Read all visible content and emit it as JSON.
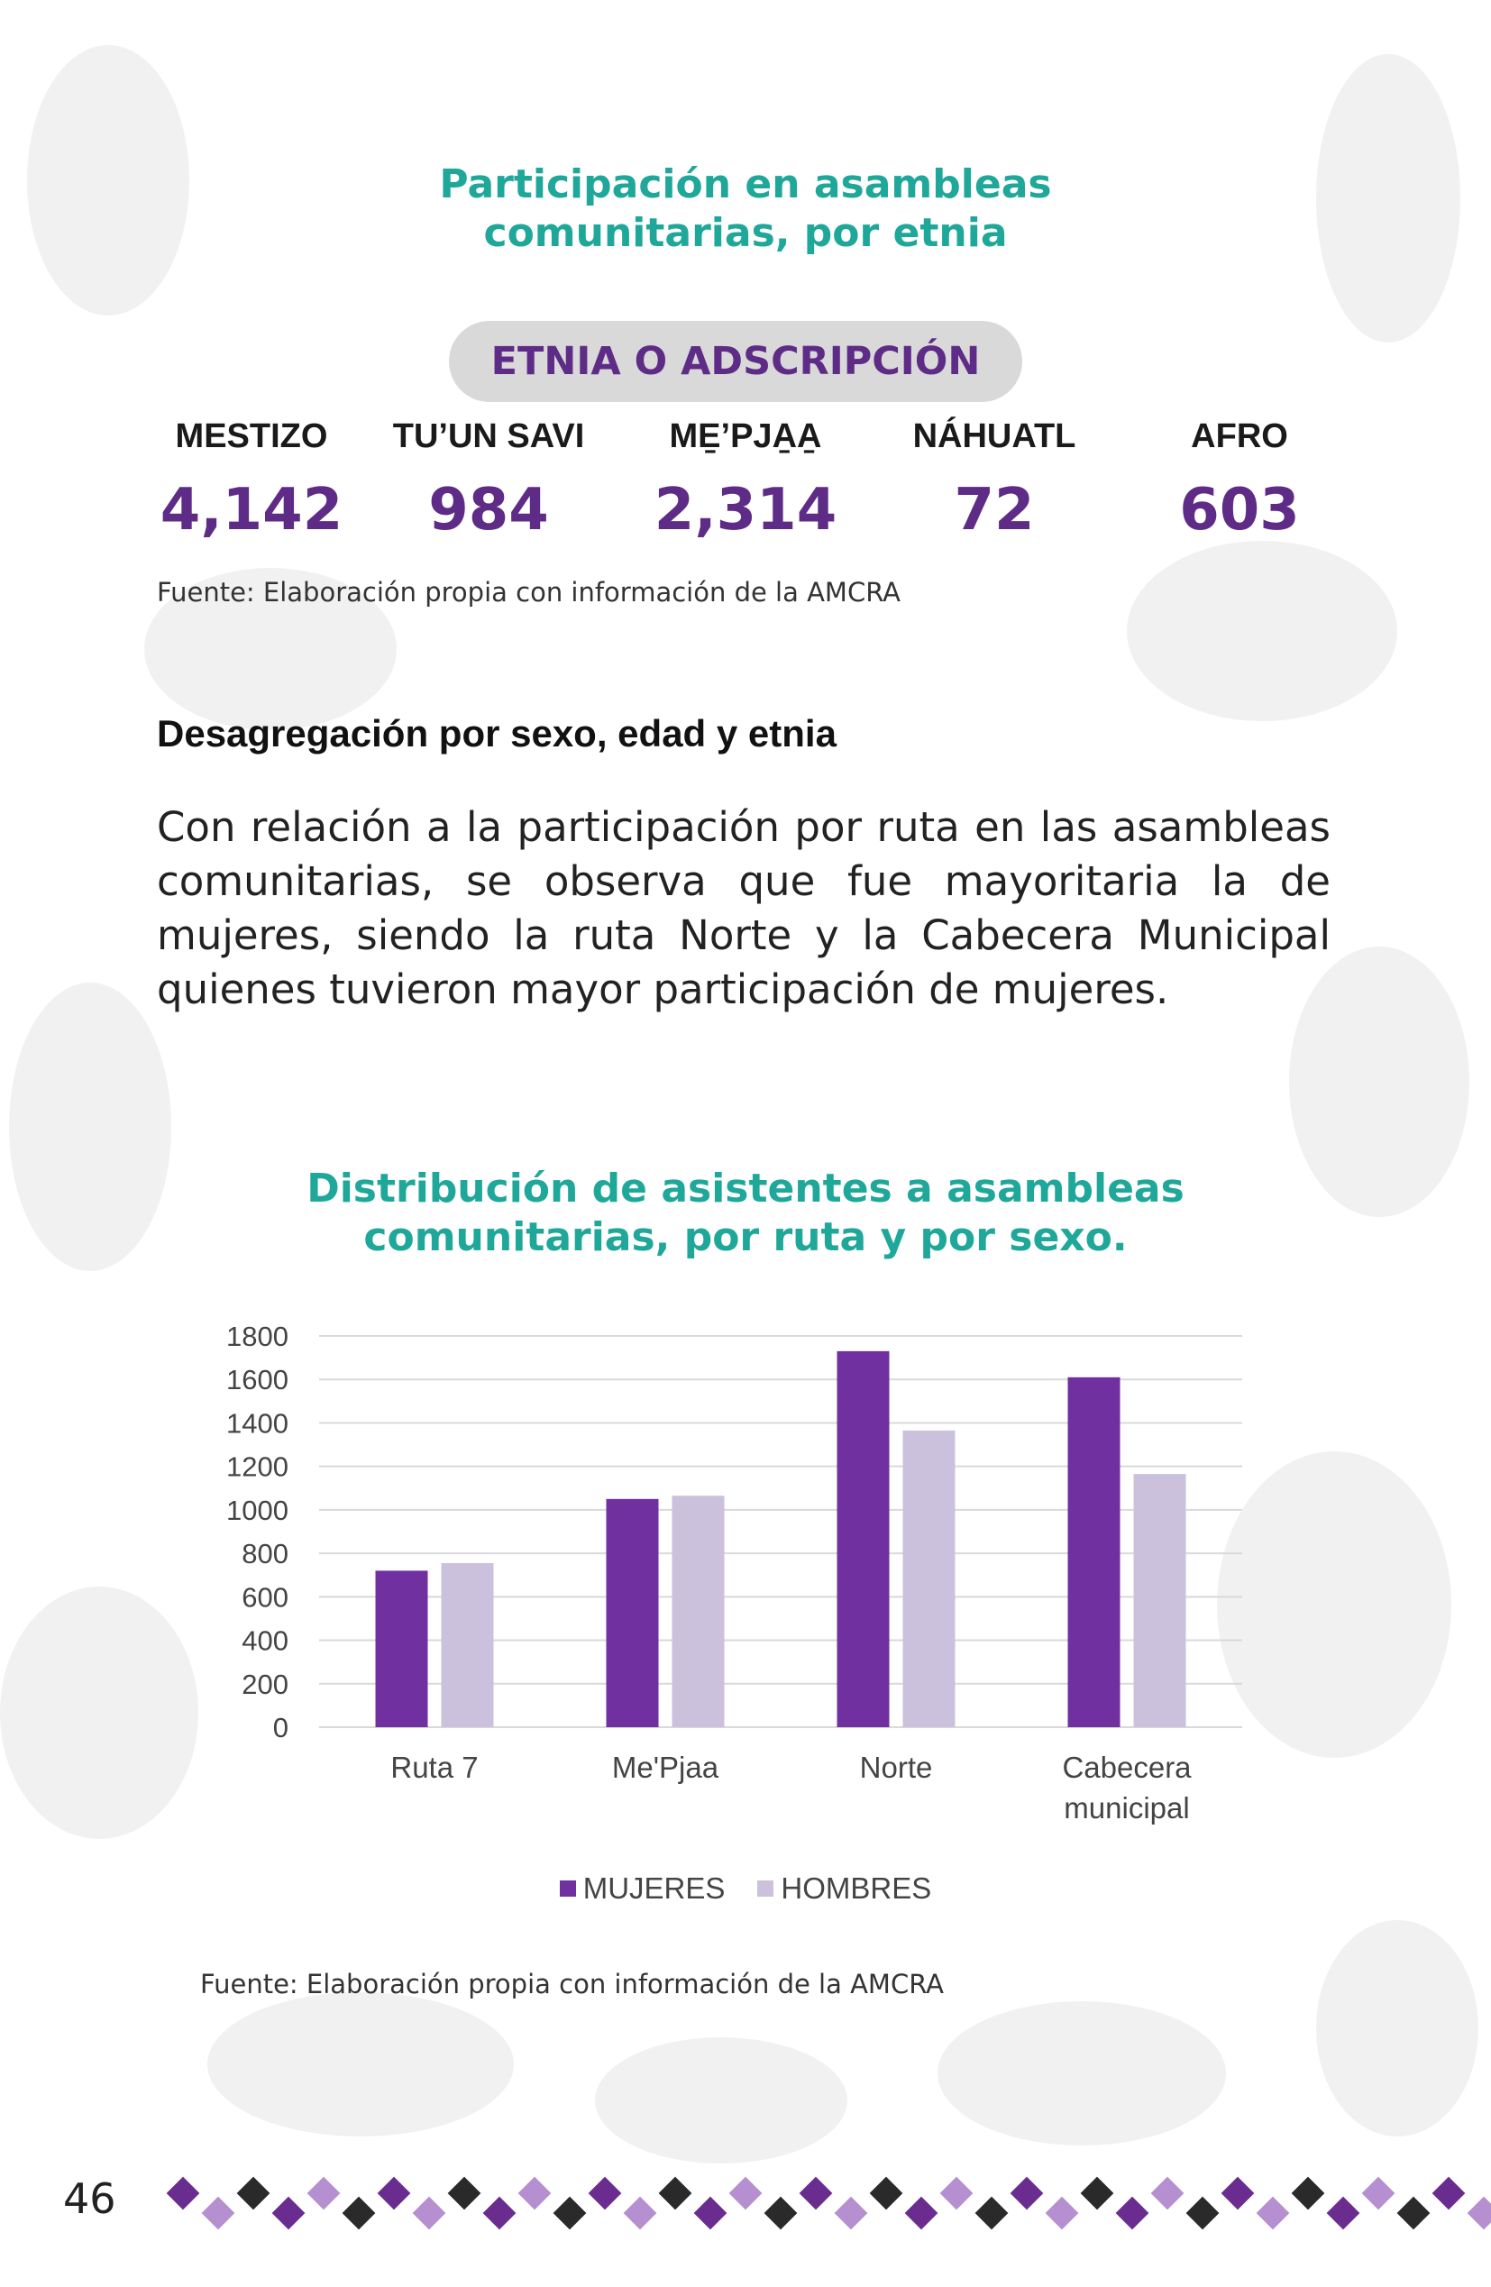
{
  "page_title": [
    "Participación en asambleas",
    "comunitarias, por etnia"
  ],
  "pill_label": "ETNIA O ADSCRIPCIÓN",
  "ethnic_groups": [
    {
      "label": "MESTIZO",
      "value": "4,142"
    },
    {
      "label": "TU’UN SAVI",
      "value": "984"
    },
    {
      "label": "ME̱’PJA̱A̱",
      "value": "2,314"
    },
    {
      "label": "NÁHUATL",
      "value": "72"
    },
    {
      "label": "AFRO",
      "value": "603"
    }
  ],
  "source_top": "Fuente: Elaboración propia con información de la AMCRA",
  "section_heading": "Desagregación por sexo, edad y etnia",
  "paragraph": "Con relación a la participación por ruta en las asambleas comunitarias, se observa que fue mayoritaria la de mujeres, siendo la ruta Norte y la Cabecera Municipal quienes tuvieron mayor participación de mujeres.",
  "chart_title": [
    "Distribución de asistentes a asambleas",
    "comunitarias, por ruta y por sexo."
  ],
  "chart_data": {
    "type": "bar",
    "title": "Distribución de asistentes a asambleas comunitarias, por ruta y por sexo.",
    "categories": [
      [
        "Ruta 7"
      ],
      [
        "Me'Pjaa"
      ],
      [
        "Norte"
      ],
      [
        "Cabecera",
        "municipal"
      ]
    ],
    "series": [
      {
        "name": "MUJERES",
        "values": [
          720,
          1050,
          1730,
          1610
        ],
        "color": "#7030a0"
      },
      {
        "name": "HOMBRES",
        "values": [
          755,
          1065,
          1365,
          1165
        ],
        "color": "#cbc1dc"
      }
    ],
    "yticks": [
      0,
      200,
      400,
      600,
      800,
      1000,
      1200,
      1400,
      1600,
      1800
    ],
    "ylim": [
      0,
      1800
    ],
    "grid": true,
    "legend_position": "bottom"
  },
  "source_bottom": "Fuente: Elaboración propia con información de la AMCRA",
  "page_number": "46",
  "colors": {
    "teal": "#1fa89a",
    "purple": "#5e2c86",
    "bar_women": "#7030a0",
    "bar_men": "#cbc1dc"
  }
}
